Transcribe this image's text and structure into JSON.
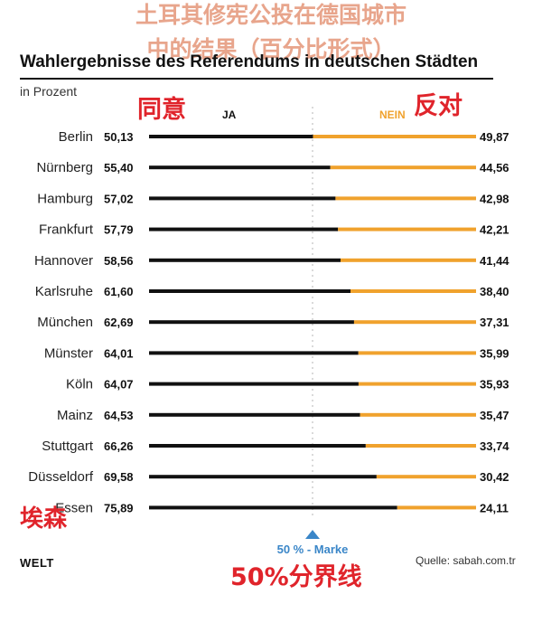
{
  "annotations": {
    "zh_title_line1": "土耳其修宪公投在德国城市",
    "zh_title_line2": "中的结果（百分比形式）",
    "zh_yes": "同意",
    "zh_no": "反对",
    "zh_essen": "埃森",
    "zh_midline": "50%分界线"
  },
  "header": {
    "source": "Quelle: sabah.com.tr",
    "brand": "WELT"
  },
  "colors": {
    "ja": "#111111",
    "nein": "#f0a22d",
    "marker": "#3a86c8",
    "accent_red": "#e0242b"
  },
  "chart_data": {
    "type": "bar",
    "orientation": "horizontal",
    "stacked": true,
    "title": "Wahlergebnisse des Referendums in deutschen Städten",
    "subtitle": "in Prozent",
    "categories": [
      "Berlin",
      "Nürnberg",
      "Hamburg",
      "Frankfurt",
      "Hannover",
      "Karlsruhe",
      "München",
      "Münster",
      "Köln",
      "Mainz",
      "Stuttgart",
      "Düsseldorf",
      "Essen"
    ],
    "series": [
      {
        "name": "JA",
        "values": [
          50.13,
          55.4,
          57.02,
          57.79,
          58.56,
          61.6,
          62.69,
          64.01,
          64.07,
          64.53,
          66.26,
          69.58,
          75.89
        ],
        "labels": [
          "50,13",
          "55,40",
          "57,02",
          "57,79",
          "58,56",
          "61,60",
          "62,69",
          "64,01",
          "64,07",
          "64,53",
          "66,26",
          "69,58",
          "75,89"
        ]
      },
      {
        "name": "NEIN",
        "values": [
          49.87,
          44.56,
          42.98,
          42.21,
          41.44,
          38.4,
          37.31,
          35.99,
          35.93,
          35.47,
          33.74,
          30.42,
          24.11
        ],
        "labels": [
          "49,87",
          "44,56",
          "42,98",
          "42,21",
          "41,44",
          "38,40",
          "37,31",
          "35,99",
          "35,93",
          "35,47",
          "33,74",
          "30,42",
          "24,11"
        ]
      }
    ],
    "xlim": [
      0,
      100
    ],
    "reference_line": {
      "value": 50,
      "label": "50 % - Marke"
    }
  }
}
